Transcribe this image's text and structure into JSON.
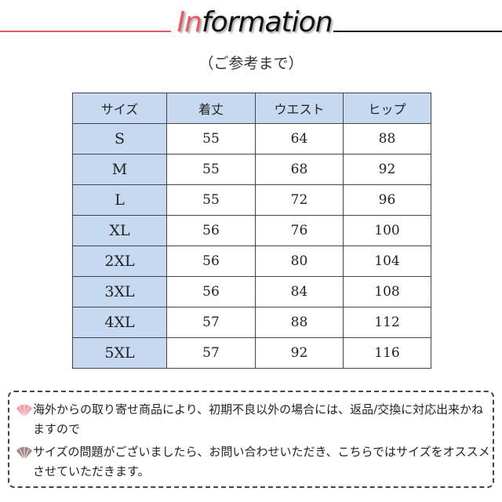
{
  "header": {
    "title_accent": "In",
    "title_rest": "formation",
    "subtitle": "（ご参考まで）",
    "accent_color": "#e85a63"
  },
  "table": {
    "columns": [
      "サイズ",
      "着丈",
      "ウエスト",
      "ヒップ"
    ],
    "rows": [
      [
        "S",
        "55",
        "64",
        "88"
      ],
      [
        "M",
        "55",
        "68",
        "92"
      ],
      [
        "L",
        "55",
        "72",
        "96"
      ],
      [
        "XL",
        "56",
        "76",
        "100"
      ],
      [
        "2XL",
        "56",
        "80",
        "104"
      ],
      [
        "3XL",
        "56",
        "84",
        "108"
      ],
      [
        "4XL",
        "57",
        "88",
        "112"
      ],
      [
        "5XL",
        "57",
        "92",
        "116"
      ]
    ],
    "header_color": "#c6d9f0"
  },
  "notes": [
    {
      "icon": "fan-icon",
      "color": "#f0a0a8",
      "text": "海外からの取り寄せ商品により、初期不良以外の場合には、返品/交換に対応出来かねますので"
    },
    {
      "icon": "fan-icon",
      "color": "#a08888",
      "text": "サイズの問題がございましたら、お問い合わせいただき、こちらではサイズをオススメさせていただきます。"
    }
  ]
}
